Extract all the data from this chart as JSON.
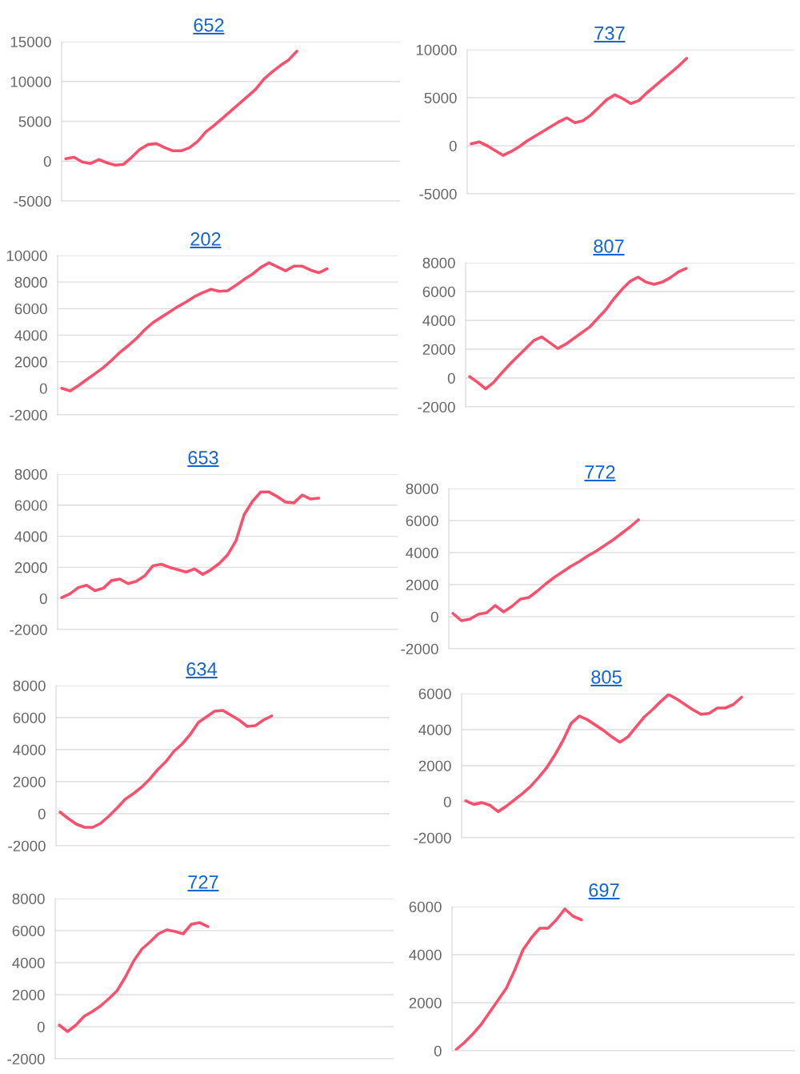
{
  "chart_data": [
    {
      "type": "line",
      "title": "652",
      "categories": [
        null,
        null,
        null,
        null,
        null,
        null,
        null,
        null,
        null,
        null,
        null,
        null,
        null,
        null,
        null,
        null,
        null,
        null,
        null,
        null,
        null,
        null,
        null,
        null,
        null,
        null,
        null,
        null,
        null,
        null,
        null,
        null,
        null,
        null,
        null,
        null,
        null,
        null,
        null,
        null,
        null
      ],
      "series": [
        {
          "color": "#f9506e",
          "values": [
            300,
            500,
            -100,
            -300,
            200,
            -200,
            -500,
            -400,
            500,
            1500,
            2100,
            2200,
            1700,
            1300,
            1300,
            1700,
            2500,
            3700,
            4500,
            5400,
            6300,
            7200,
            8100,
            9000,
            10300,
            11200,
            12000,
            12700,
            13800,
            null,
            null,
            null,
            null,
            null,
            null,
            null,
            null,
            null,
            null,
            null,
            null
          ]
        }
      ],
      "ylim": [
        -5000,
        15000
      ],
      "yticks": [
        -5000,
        0,
        5000,
        10000,
        15000
      ],
      "grid": "y",
      "tick_labels": "y"
    },
    {
      "type": "line",
      "title": "737",
      "categories": [
        null,
        null,
        null,
        null,
        null,
        null,
        null,
        null,
        null,
        null,
        null,
        null,
        null,
        null,
        null,
        null,
        null,
        null,
        null,
        null,
        null,
        null,
        null,
        null,
        null,
        null,
        null,
        null,
        null,
        null,
        null,
        null,
        null,
        null,
        null,
        null,
        null,
        null,
        null,
        null,
        null
      ],
      "series": [
        {
          "color": "#f9506e",
          "values": [
            200,
            400,
            0,
            -500,
            -1000,
            -600,
            -100,
            500,
            1000,
            1500,
            2000,
            2500,
            2900,
            2400,
            2600,
            3200,
            4000,
            4800,
            5300,
            4900,
            4400,
            4700,
            5500,
            6200,
            6900,
            7600,
            8300,
            9100,
            null,
            null,
            null,
            null,
            null,
            null,
            null,
            null,
            null,
            null,
            null,
            null,
            null
          ]
        }
      ],
      "ylim": [
        -5000,
        10000
      ],
      "yticks": [
        -5000,
        0,
        5000,
        10000
      ],
      "grid": "y",
      "tick_labels": "y"
    },
    {
      "type": "line",
      "title": "202",
      "categories": [
        null,
        null,
        null,
        null,
        null,
        null,
        null,
        null,
        null,
        null,
        null,
        null,
        null,
        null,
        null,
        null,
        null,
        null,
        null,
        null,
        null,
        null,
        null,
        null,
        null,
        null,
        null,
        null,
        null,
        null,
        null,
        null,
        null,
        null,
        null,
        null,
        null,
        null,
        null,
        null,
        null
      ],
      "series": [
        {
          "color": "#f9506e",
          "values": [
            0,
            -200,
            200,
            650,
            1100,
            1550,
            2100,
            2700,
            3200,
            3750,
            4400,
            4950,
            5350,
            5750,
            6150,
            6500,
            6900,
            7200,
            7450,
            7300,
            7350,
            7750,
            8200,
            8600,
            9100,
            9450,
            9150,
            8850,
            9200,
            9200,
            8900,
            8700,
            9000,
            null,
            null,
            null,
            null,
            null,
            null,
            null,
            null
          ]
        }
      ],
      "ylim": [
        -2000,
        10000
      ],
      "yticks": [
        -2000,
        0,
        2000,
        4000,
        6000,
        8000,
        10000
      ],
      "grid": "y",
      "tick_labels": "y"
    },
    {
      "type": "line",
      "title": "807",
      "categories": [
        null,
        null,
        null,
        null,
        null,
        null,
        null,
        null,
        null,
        null,
        null,
        null,
        null,
        null,
        null,
        null,
        null,
        null,
        null,
        null,
        null,
        null,
        null,
        null,
        null,
        null,
        null,
        null,
        null,
        null,
        null,
        null,
        null,
        null,
        null,
        null,
        null,
        null,
        null,
        null,
        null
      ],
      "series": [
        {
          "color": "#f9506e",
          "values": [
            100,
            -300,
            -750,
            -300,
            350,
            950,
            1500,
            2050,
            2600,
            2850,
            2450,
            2050,
            2350,
            2750,
            3150,
            3550,
            4150,
            4750,
            5500,
            6150,
            6700,
            7000,
            6650,
            6500,
            6650,
            6950,
            7350,
            7600,
            null,
            null,
            null,
            null,
            null,
            null,
            null,
            null,
            null,
            null,
            null,
            null,
            null
          ]
        }
      ],
      "ylim": [
        -2000,
        8000
      ],
      "yticks": [
        -2000,
        0,
        2000,
        4000,
        6000,
        8000
      ],
      "grid": "y",
      "tick_labels": "y"
    },
    {
      "type": "line",
      "title": "653",
      "categories": [
        null,
        null,
        null,
        null,
        null,
        null,
        null,
        null,
        null,
        null,
        null,
        null,
        null,
        null,
        null,
        null,
        null,
        null,
        null,
        null,
        null,
        null,
        null,
        null,
        null,
        null,
        null,
        null,
        null,
        null,
        null,
        null,
        null,
        null,
        null,
        null,
        null,
        null,
        null,
        null,
        null
      ],
      "series": [
        {
          "color": "#f9506e",
          "values": [
            50,
            300,
            700,
            850,
            500,
            650,
            1150,
            1250,
            950,
            1100,
            1450,
            2100,
            2200,
            2000,
            1850,
            1700,
            1900,
            1550,
            1850,
            2250,
            2800,
            3700,
            5400,
            6250,
            6850,
            6850,
            6550,
            6200,
            6150,
            6650,
            6400,
            6450,
            null,
            null,
            null,
            null,
            null,
            null,
            null,
            null,
            null
          ]
        }
      ],
      "ylim": [
        -2000,
        8000
      ],
      "yticks": [
        -2000,
        0,
        2000,
        4000,
        6000,
        8000
      ],
      "grid": "y",
      "tick_labels": "y"
    },
    {
      "type": "line",
      "title": "772",
      "categories": [
        null,
        null,
        null,
        null,
        null,
        null,
        null,
        null,
        null,
        null,
        null,
        null,
        null,
        null,
        null,
        null,
        null,
        null,
        null,
        null,
        null,
        null,
        null,
        null,
        null,
        null,
        null,
        null,
        null,
        null,
        null,
        null,
        null,
        null,
        null,
        null,
        null,
        null,
        null,
        null,
        null
      ],
      "series": [
        {
          "color": "#f9506e",
          "values": [
            200,
            -250,
            -150,
            150,
            250,
            700,
            300,
            650,
            1100,
            1200,
            1600,
            2050,
            2450,
            2800,
            3150,
            3450,
            3800,
            4100,
            4450,
            4800,
            5200,
            5600,
            6050,
            null,
            null,
            null,
            null,
            null,
            null,
            null,
            null,
            null,
            null,
            null,
            null,
            null,
            null,
            null,
            null,
            null,
            null
          ]
        }
      ],
      "ylim": [
        -2000,
        8000
      ],
      "yticks": [
        -2000,
        0,
        2000,
        4000,
        6000,
        8000
      ],
      "grid": "y",
      "tick_labels": "y"
    },
    {
      "type": "line",
      "title": "634",
      "categories": [
        null,
        null,
        null,
        null,
        null,
        null,
        null,
        null,
        null,
        null,
        null,
        null,
        null,
        null,
        null,
        null,
        null,
        null,
        null,
        null,
        null,
        null,
        null,
        null,
        null,
        null,
        null,
        null,
        null,
        null,
        null,
        null,
        null,
        null,
        null,
        null,
        null,
        null,
        null,
        null,
        null
      ],
      "series": [
        {
          "color": "#f9506e",
          "values": [
            100,
            -300,
            -650,
            -850,
            -850,
            -600,
            -150,
            350,
            900,
            1250,
            1650,
            2150,
            2750,
            3250,
            3900,
            4350,
            4950,
            5700,
            6050,
            6400,
            6450,
            6150,
            5850,
            5450,
            5500,
            5850,
            6100,
            null,
            null,
            null,
            null,
            null,
            null,
            null,
            null,
            null,
            null,
            null,
            null,
            null,
            null
          ]
        }
      ],
      "ylim": [
        -2000,
        8000
      ],
      "yticks": [
        -2000,
        0,
        2000,
        4000,
        6000,
        8000
      ],
      "grid": "y",
      "tick_labels": "y"
    },
    {
      "type": "line",
      "title": "805",
      "categories": [
        null,
        null,
        null,
        null,
        null,
        null,
        null,
        null,
        null,
        null,
        null,
        null,
        null,
        null,
        null,
        null,
        null,
        null,
        null,
        null,
        null,
        null,
        null,
        null,
        null,
        null,
        null,
        null,
        null,
        null,
        null,
        null,
        null,
        null,
        null,
        null,
        null,
        null,
        null,
        null,
        null
      ],
      "series": [
        {
          "color": "#f9506e",
          "values": [
            50,
            -150,
            -50,
            -200,
            -550,
            -250,
            100,
            450,
            850,
            1350,
            1900,
            2600,
            3400,
            4350,
            4750,
            4550,
            4250,
            3950,
            3600,
            3300,
            3600,
            4150,
            4700,
            5100,
            5550,
            5950,
            5700,
            5400,
            5100,
            4850,
            4900,
            5200,
            5200,
            5400,
            5800,
            null,
            null,
            null,
            null,
            null,
            null
          ]
        }
      ],
      "ylim": [
        -2000,
        6000
      ],
      "yticks": [
        -2000,
        0,
        2000,
        4000,
        6000
      ],
      "grid": "y",
      "tick_labels": "y"
    },
    {
      "type": "line",
      "title": "727",
      "categories": [
        null,
        null,
        null,
        null,
        null,
        null,
        null,
        null,
        null,
        null,
        null,
        null,
        null,
        null,
        null,
        null,
        null,
        null,
        null,
        null,
        null,
        null,
        null,
        null,
        null,
        null,
        null,
        null,
        null,
        null,
        null,
        null,
        null,
        null,
        null,
        null,
        null,
        null,
        null,
        null,
        null
      ],
      "series": [
        {
          "color": "#f9506e",
          "values": [
            100,
            -300,
            100,
            650,
            950,
            1300,
            1750,
            2250,
            3100,
            4100,
            4850,
            5300,
            5800,
            6050,
            5950,
            5800,
            6400,
            6500,
            6250,
            null,
            null,
            null,
            null,
            null,
            null,
            null,
            null,
            null,
            null,
            null,
            null,
            null,
            null,
            null,
            null,
            null,
            null,
            null,
            null,
            null,
            null
          ]
        }
      ],
      "ylim": [
        -2000,
        8000
      ],
      "yticks": [
        -2000,
        0,
        2000,
        4000,
        6000,
        8000
      ],
      "grid": "y",
      "tick_labels": "y"
    },
    {
      "type": "line",
      "title": "697",
      "categories": [
        null,
        null,
        null,
        null,
        null,
        null,
        null,
        null,
        null,
        null,
        null,
        null,
        null,
        null,
        null,
        null,
        null,
        null,
        null,
        null,
        null,
        null,
        null,
        null,
        null,
        null,
        null,
        null,
        null,
        null,
        null,
        null,
        null,
        null,
        null,
        null,
        null,
        null,
        null,
        null,
        null
      ],
      "series": [
        {
          "color": "#f9506e",
          "values": [
            50,
            350,
            700,
            1100,
            1600,
            2100,
            2600,
            3350,
            4200,
            4700,
            5100,
            5100,
            5450,
            5900,
            5600,
            5450,
            null,
            null,
            null,
            null,
            null,
            null,
            null,
            null,
            null,
            null,
            null,
            null,
            null,
            null,
            null,
            null,
            null,
            null,
            null,
            null,
            null,
            null,
            null,
            null,
            null
          ]
        }
      ],
      "ylim": [
        0,
        6000
      ],
      "yticks": [
        0,
        2000,
        4000,
        6000
      ],
      "grid": "y",
      "tick_labels": "y"
    }
  ]
}
